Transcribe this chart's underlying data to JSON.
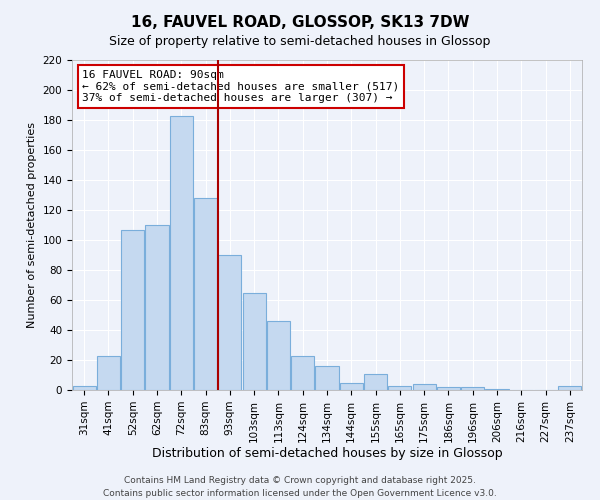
{
  "title": "16, FAUVEL ROAD, GLOSSOP, SK13 7DW",
  "subtitle": "Size of property relative to semi-detached houses in Glossop",
  "xlabel": "Distribution of semi-detached houses by size in Glossop",
  "ylabel": "Number of semi-detached properties",
  "categories": [
    "31sqm",
    "41sqm",
    "52sqm",
    "62sqm",
    "72sqm",
    "83sqm",
    "93sqm",
    "103sqm",
    "113sqm",
    "124sqm",
    "134sqm",
    "144sqm",
    "155sqm",
    "165sqm",
    "175sqm",
    "186sqm",
    "196sqm",
    "206sqm",
    "216sqm",
    "227sqm",
    "237sqm"
  ],
  "values": [
    3,
    23,
    107,
    110,
    183,
    128,
    90,
    65,
    46,
    23,
    16,
    5,
    11,
    3,
    4,
    2,
    2,
    1,
    0,
    0,
    3
  ],
  "bar_color": "#c5d9f0",
  "bar_edge_color": "#7aaedb",
  "vline_x": 5.5,
  "vline_color": "#aa0000",
  "annotation_text": "16 FAUVEL ROAD: 90sqm\n← 62% of semi-detached houses are smaller (517)\n37% of semi-detached houses are larger (307) →",
  "annotation_box_color": "#ffffff",
  "annotation_box_edge_color": "#cc0000",
  "ylim": [
    0,
    220
  ],
  "yticks": [
    0,
    20,
    40,
    60,
    80,
    100,
    120,
    140,
    160,
    180,
    200,
    220
  ],
  "background_color": "#eef2fa",
  "grid_color": "#ffffff",
  "footer_line1": "Contains HM Land Registry data © Crown copyright and database right 2025.",
  "footer_line2": "Contains public sector information licensed under the Open Government Licence v3.0.",
  "title_fontsize": 11,
  "xlabel_fontsize": 9,
  "ylabel_fontsize": 8,
  "tick_fontsize": 7.5,
  "annotation_fontsize": 8,
  "footer_fontsize": 6.5
}
